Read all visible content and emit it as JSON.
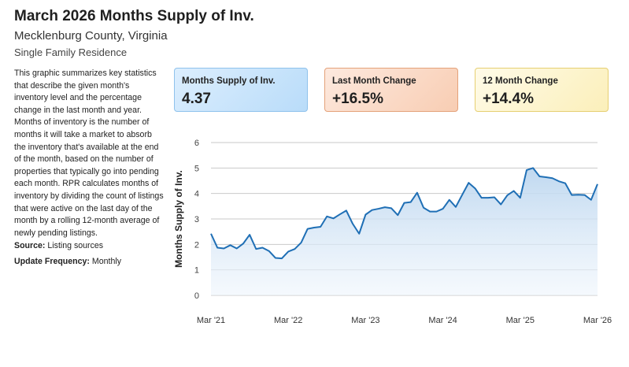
{
  "header": {
    "title": "March 2026 Months Supply of Inv.",
    "location": "Mecklenburg County, Virginia",
    "property_type": "Single Family Residence"
  },
  "description": "This graphic summarizes key statistics that describe the given month's inventory level and the percentage change in the last month and year. Months of inventory is the number of months it will take a market to absorb the inventory that's available at the end of the month, based on the number of properties that typically go into pending each month. RPR calculates months of inventory by dividing the count of listings that were active on the last day of the month by a rolling 12-month average of newly pending listings.",
  "source": {
    "label": "Source:",
    "value": "Listing sources"
  },
  "update_frequency": {
    "label": "Update Frequency:",
    "value": "Monthly"
  },
  "cards": [
    {
      "label": "Months Supply of Inv.",
      "value": "4.37",
      "color": "#b9dcf9"
    },
    {
      "label": "Last Month Change",
      "value": "+16.5%",
      "color": "#f8cdb3"
    },
    {
      "label": "12 Month Change",
      "value": "+14.4%",
      "color": "#fbefba"
    }
  ],
  "chart_data": {
    "type": "area",
    "ylabel": "Months Supply of Inv.",
    "xlabel": "",
    "ylim": [
      0,
      6
    ],
    "yticks": [
      0,
      1,
      2,
      3,
      4,
      5,
      6
    ],
    "x_tick_labels": [
      "Mar '21",
      "Mar '22",
      "Mar '23",
      "Mar '24",
      "Mar '25",
      "Mar '26"
    ],
    "x_tick_indices": [
      0,
      12,
      24,
      36,
      48,
      60
    ],
    "grid": true,
    "line_color": "#1f6fb5",
    "series": [
      {
        "name": "Months Supply of Inv.",
        "values": [
          2.42,
          1.87,
          1.84,
          1.97,
          1.84,
          2.03,
          2.38,
          1.82,
          1.87,
          1.74,
          1.47,
          1.45,
          1.72,
          1.82,
          2.07,
          2.61,
          2.66,
          2.69,
          3.1,
          3.02,
          3.18,
          3.33,
          2.81,
          2.42,
          3.17,
          3.35,
          3.4,
          3.46,
          3.42,
          3.15,
          3.63,
          3.66,
          4.03,
          3.44,
          3.29,
          3.29,
          3.4,
          3.75,
          3.47,
          3.95,
          4.42,
          4.2,
          3.83,
          3.83,
          3.85,
          3.57,
          3.93,
          4.1,
          3.83,
          4.92,
          5.0,
          4.67,
          4.64,
          4.6,
          4.48,
          4.4,
          3.94,
          3.95,
          3.94,
          3.75,
          4.37
        ]
      }
    ]
  }
}
